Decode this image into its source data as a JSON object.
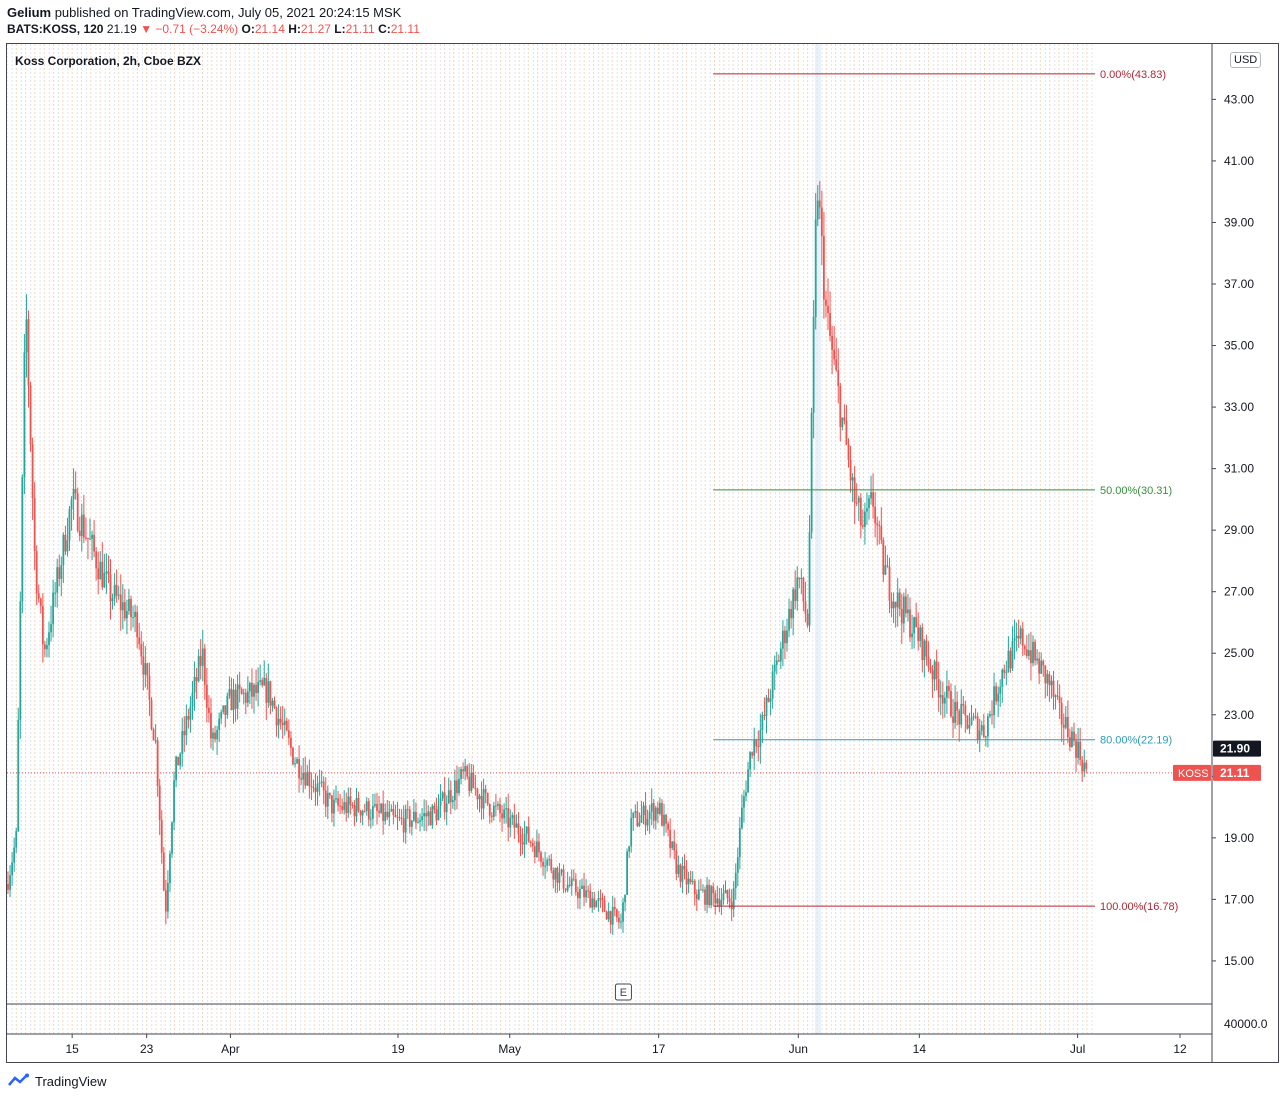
{
  "header": {
    "publisher": "Gelium",
    "published_text": "published on TradingView.com, July 05, 2021 20:24:15 MSK",
    "symbol": "BATS:KOSS, 120",
    "last": "21.19",
    "change": "−0.71 (−3.24%)",
    "o_label": "O:",
    "o_val": "21.14",
    "h_label": "H:",
    "h_val": "21.27",
    "l_label": "L:",
    "l_val": "21.11",
    "c_label": "C:",
    "c_val": "21.11",
    "down_arrow": "▼"
  },
  "legend": {
    "title": "Koss Corporation, 2h, Cboe BZX"
  },
  "currency": "USD",
  "footer": {
    "brand": "TradingView"
  },
  "earnings_marker": "E",
  "colors": {
    "up": "#26a69a",
    "down": "#ef5350",
    "fib_0": "#b22833",
    "fib_50": "#388e3c",
    "fib_80": "#2d9bb8",
    "fib_100": "#b22833",
    "axis_text": "#131722"
  },
  "chart_data": {
    "type": "candlestick",
    "title": "Koss Corporation, 2h, Cboe BZX",
    "ylim": [
      13.6,
      44.8
    ],
    "y_ticks": [
      "15.00",
      "17.00",
      "19.00",
      "21.00",
      "23.00",
      "25.00",
      "27.00",
      "29.00",
      "31.00",
      "33.00",
      "35.00",
      "37.00",
      "39.00",
      "41.00",
      "43.00"
    ],
    "volume_tick": "40000.0",
    "x_ticks": [
      "15",
      "23",
      "Apr",
      "19",
      "May",
      "17",
      "Jun",
      "14",
      "Jul",
      "12"
    ],
    "grid": true,
    "price_labels": [
      {
        "label": "",
        "value": 21.9,
        "text": "21.90",
        "color": "#131722"
      },
      {
        "label": "KOSS",
        "value": 21.11,
        "text": "21.11",
        "color": "#ef5350"
      }
    ],
    "fib_levels": [
      {
        "text": "0.00%(43.83)",
        "value": 43.83,
        "color": "#b22833"
      },
      {
        "text": "50.00%(30.31)",
        "value": 30.31,
        "color": "#388e3c"
      },
      {
        "text": "80.00%(22.19)",
        "value": 22.19,
        "color": "#2d9bb8"
      },
      {
        "text": "100.00%(16.78)",
        "value": 16.78,
        "color": "#b22833"
      }
    ],
    "close_path": [
      [
        "Mar 08",
        17.5
      ],
      [
        "Mar 09",
        19.0
      ],
      [
        "Mar 10",
        36.5
      ],
      [
        "Mar 11",
        28.0
      ],
      [
        "Mar 12",
        25.0
      ],
      [
        "Mar 15",
        30.0
      ],
      [
        "Mar 17",
        28.5
      ],
      [
        "Mar 19",
        27.0
      ],
      [
        "Mar 22",
        26.0
      ],
      [
        "Mar 24",
        22.0
      ],
      [
        "Mar 25",
        16.5
      ],
      [
        "Mar 26",
        21.0
      ],
      [
        "Mar 29",
        25.0
      ],
      [
        "Mar 30",
        22.0
      ],
      [
        "Apr 01",
        23.5
      ],
      [
        "Apr 05",
        23.8
      ],
      [
        "Apr 08",
        21.5
      ],
      [
        "Apr 12",
        20.0
      ],
      [
        "Apr 15",
        20.0
      ],
      [
        "Apr 19",
        19.5
      ],
      [
        "Apr 23",
        19.8
      ],
      [
        "Apr 26",
        21.0
      ],
      [
        "Apr 29",
        20.0
      ],
      [
        "May 03",
        19.0
      ],
      [
        "May 07",
        17.5
      ],
      [
        "May 10",
        17.0
      ],
      [
        "May 13",
        16.2
      ],
      [
        "May 14",
        19.5
      ],
      [
        "May 17",
        20.0
      ],
      [
        "May 19",
        18.0
      ],
      [
        "May 21",
        17.2
      ],
      [
        "May 25",
        17.0
      ],
      [
        "May 26",
        20.0
      ],
      [
        "May 27",
        22.0
      ],
      [
        "May 28",
        22.5
      ],
      [
        "Jun 01",
        27.5
      ],
      [
        "Jun 02",
        26.0
      ],
      [
        "Jun 03",
        40.5
      ],
      [
        "Jun 04",
        36.0
      ],
      [
        "Jun 07",
        30.0
      ],
      [
        "Jun 08",
        29.0
      ],
      [
        "Jun 09",
        30.0
      ],
      [
        "Jun 10",
        28.0
      ],
      [
        "Jun 11",
        27.0
      ],
      [
        "Jun 14",
        25.5
      ],
      [
        "Jun 16",
        24.0
      ],
      [
        "Jun 18",
        23.0
      ],
      [
        "Jun 21",
        22.5
      ],
      [
        "Jun 23",
        24.5
      ],
      [
        "Jun 25",
        25.5
      ],
      [
        "Jun 28",
        24.0
      ],
      [
        "Jun 29",
        23.0
      ],
      [
        "Jun 30",
        22.5
      ],
      [
        "Jul 01",
        21.9
      ],
      [
        "Jul 02",
        21.11
      ]
    ]
  }
}
